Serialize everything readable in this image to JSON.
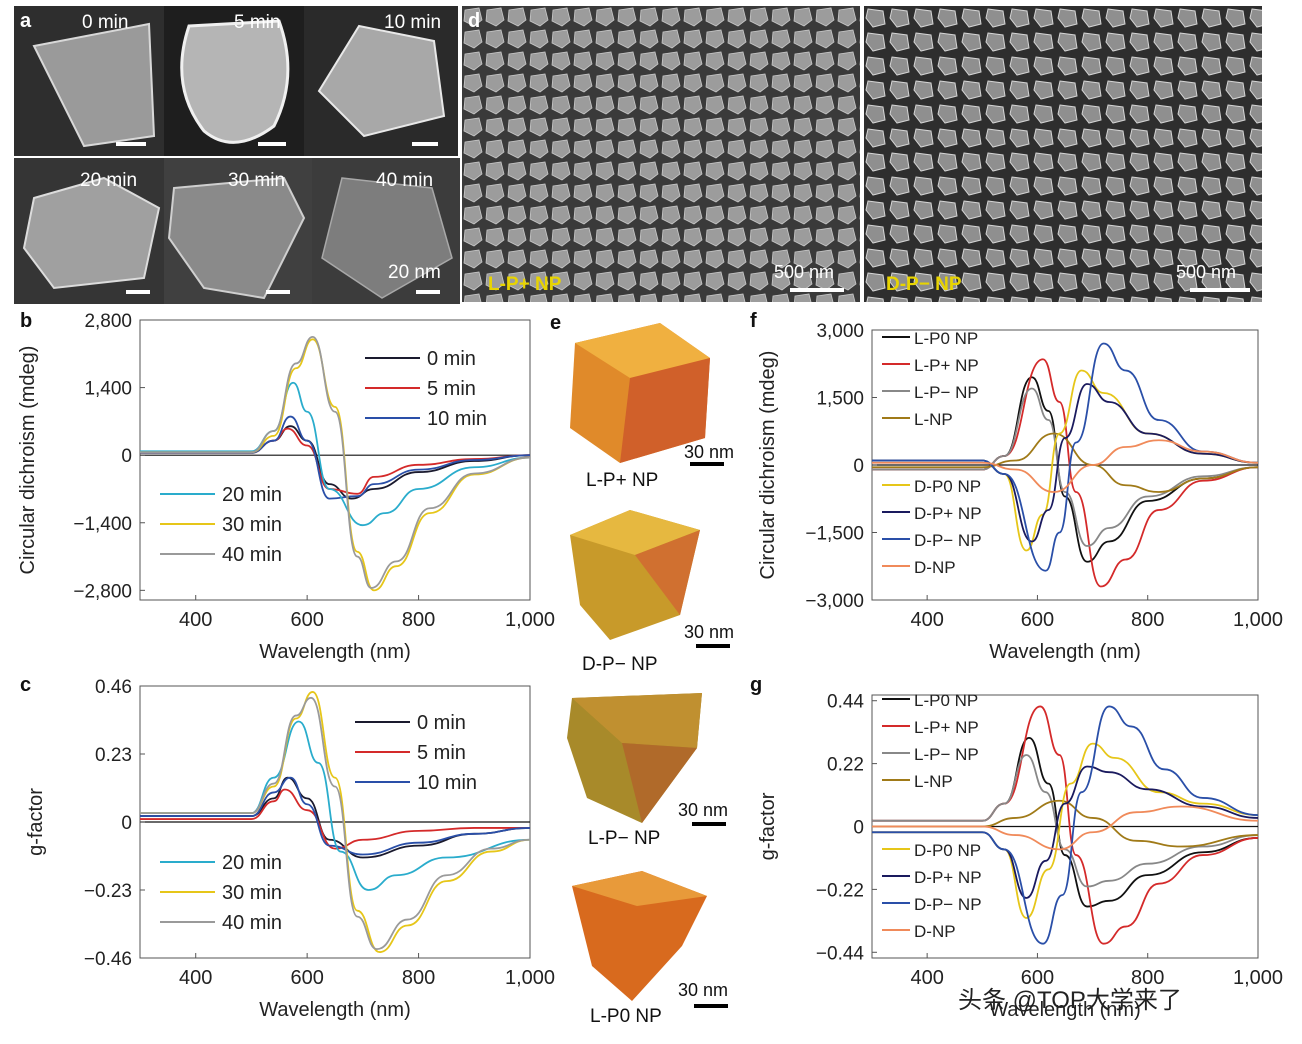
{
  "panel_labels": {
    "a": "a",
    "b": "b",
    "c": "c",
    "d": "d",
    "e": "e",
    "f": "f",
    "g": "g"
  },
  "panel_a": {
    "times": [
      "0 min",
      "5 min",
      "10 min",
      "20 min",
      "30 min",
      "40 min"
    ],
    "scale_label": "20 nm"
  },
  "panel_d": {
    "left_label": "L-P+ NP",
    "right_label": "D-P− NP",
    "scale_label": "500 nm"
  },
  "panel_e": {
    "labels": [
      "L-P+ NP",
      "D-P− NP",
      "L-P− NP",
      "L-P0 NP"
    ],
    "scale_label": "30 nm"
  },
  "watermark": "头条 @TOP大学来了",
  "chart_data": [
    {
      "id": "b",
      "type": "line",
      "xlabel": "Wavelength (nm)",
      "ylabel": "Circular dichroism (mdeg)",
      "xlim": [
        300,
        1000
      ],
      "ylim": [
        -3000,
        2800
      ],
      "xticks": [
        400,
        600,
        800,
        1000
      ],
      "xtick_labels": [
        "400",
        "600",
        "800",
        "1,000"
      ],
      "yticks": [
        2800,
        1400,
        0,
        -1400,
        -2800
      ],
      "ytick_labels": [
        "2,800",
        "1,400",
        "0",
        "−1,400",
        "−2,800"
      ],
      "series": [
        {
          "name": "0 min",
          "color": "#1a1a2e",
          "x": [
            300,
            500,
            540,
            570,
            600,
            640,
            680,
            720,
            800,
            900,
            1000
          ],
          "y": [
            50,
            50,
            300,
            600,
            300,
            -600,
            -900,
            -700,
            -350,
            -120,
            0
          ]
        },
        {
          "name": "5 min",
          "color": "#d42a2a",
          "x": [
            300,
            500,
            540,
            565,
            600,
            640,
            690,
            720,
            800,
            900,
            1000
          ],
          "y": [
            50,
            50,
            300,
            550,
            200,
            -700,
            -800,
            -450,
            -200,
            -80,
            0
          ]
        },
        {
          "name": "10 min",
          "color": "#2a4fa8",
          "x": [
            300,
            500,
            540,
            570,
            600,
            640,
            690,
            720,
            800,
            900,
            1000
          ],
          "y": [
            50,
            50,
            300,
            800,
            300,
            -900,
            -850,
            -600,
            -300,
            -100,
            0
          ]
        },
        {
          "name": "20 min",
          "color": "#2aaccc",
          "x": [
            300,
            500,
            540,
            575,
            600,
            640,
            700,
            740,
            800,
            900,
            1000
          ],
          "y": [
            80,
            80,
            500,
            1500,
            900,
            -700,
            -1450,
            -1200,
            -700,
            -250,
            -50
          ]
        },
        {
          "name": "30 min",
          "color": "#e6c619",
          "x": [
            300,
            500,
            540,
            580,
            610,
            650,
            690,
            720,
            760,
            820,
            900,
            1000
          ],
          "y": [
            60,
            60,
            400,
            1800,
            2400,
            1000,
            -2000,
            -2800,
            -2300,
            -1200,
            -400,
            -50
          ]
        },
        {
          "name": "40 min",
          "color": "#9a9a9a",
          "x": [
            300,
            500,
            540,
            580,
            610,
            650,
            690,
            715,
            760,
            820,
            900,
            1000
          ],
          "y": [
            60,
            60,
            500,
            1900,
            2450,
            900,
            -2100,
            -2750,
            -2200,
            -1100,
            -380,
            -50
          ]
        }
      ]
    },
    {
      "id": "c",
      "type": "line",
      "xlabel": "Wavelength (nm)",
      "ylabel": "g-factor",
      "xlim": [
        300,
        1000
      ],
      "ylim": [
        -0.46,
        0.46
      ],
      "xticks": [
        400,
        600,
        800,
        1000
      ],
      "xtick_labels": [
        "400",
        "600",
        "800",
        "1,000"
      ],
      "yticks": [
        0.46,
        0.23,
        0,
        -0.23,
        -0.46
      ],
      "ytick_labels": [
        "0.46",
        "0.23",
        "0",
        "−0.23",
        "−0.46"
      ],
      "series": [
        {
          "name": "0 min",
          "color": "#1a1a2e",
          "x": [
            300,
            500,
            540,
            565,
            600,
            640,
            700,
            800,
            900,
            1000
          ],
          "y": [
            0.02,
            0.02,
            0.08,
            0.15,
            0.08,
            -0.06,
            -0.12,
            -0.08,
            -0.04,
            -0.02
          ]
        },
        {
          "name": "5 min",
          "color": "#d42a2a",
          "x": [
            300,
            500,
            540,
            560,
            600,
            650,
            700,
            800,
            900,
            1000
          ],
          "y": [
            0.01,
            0.01,
            0.07,
            0.11,
            0.04,
            -0.09,
            -0.06,
            -0.03,
            -0.02,
            -0.02
          ]
        },
        {
          "name": "10 min",
          "color": "#2a4fa8",
          "x": [
            300,
            500,
            540,
            570,
            600,
            640,
            700,
            800,
            900,
            1000
          ],
          "y": [
            0.02,
            0.02,
            0.1,
            0.15,
            0.06,
            -0.08,
            -0.11,
            -0.07,
            -0.04,
            -0.02
          ]
        },
        {
          "name": "20 min",
          "color": "#2aaccc",
          "x": [
            300,
            500,
            540,
            585,
            620,
            660,
            710,
            760,
            850,
            1000
          ],
          "y": [
            0.03,
            0.03,
            0.15,
            0.34,
            0.2,
            -0.1,
            -0.23,
            -0.18,
            -0.12,
            -0.06
          ]
        },
        {
          "name": "30 min",
          "color": "#e6c619",
          "x": [
            300,
            500,
            540,
            580,
            610,
            650,
            690,
            730,
            780,
            850,
            930,
            1000
          ],
          "y": [
            0.03,
            0.03,
            0.12,
            0.35,
            0.44,
            0.15,
            -0.3,
            -0.44,
            -0.35,
            -0.2,
            -0.1,
            -0.06
          ]
        },
        {
          "name": "40 min",
          "color": "#9a9a9a",
          "x": [
            300,
            500,
            540,
            580,
            607,
            650,
            690,
            725,
            780,
            850,
            930,
            1000
          ],
          "y": [
            0.03,
            0.03,
            0.13,
            0.36,
            0.42,
            0.12,
            -0.32,
            -0.43,
            -0.33,
            -0.18,
            -0.09,
            -0.06
          ]
        }
      ]
    },
    {
      "id": "f",
      "type": "line",
      "xlabel": "Wavelength (nm)",
      "ylabel": "Circular dichroism (mdeg)",
      "xlim": [
        300,
        1000
      ],
      "ylim": [
        -3000,
        3000
      ],
      "xticks": [
        400,
        600,
        800,
        1000
      ],
      "xtick_labels": [
        "400",
        "600",
        "800",
        "1,000"
      ],
      "yticks": [
        3000,
        1500,
        0,
        -1500,
        -3000
      ],
      "ytick_labels": [
        "3,000",
        "1,500",
        "0",
        "−1,500",
        "−3,000"
      ],
      "series": [
        {
          "name": "L-P0 NP",
          "color": "#111111",
          "x": [
            300,
            500,
            540,
            590,
            620,
            650,
            690,
            730,
            800,
            900,
            1000
          ],
          "y": [
            -100,
            -100,
            200,
            1950,
            1200,
            -700,
            -2150,
            -1700,
            -800,
            -300,
            -50
          ]
        },
        {
          "name": "L-P+ NP",
          "color": "#d42a2a",
          "x": [
            300,
            500,
            540,
            610,
            640,
            670,
            715,
            760,
            820,
            900,
            1000
          ],
          "y": [
            -100,
            -100,
            200,
            2350,
            1400,
            -600,
            -2700,
            -2100,
            -1000,
            -350,
            -50
          ]
        },
        {
          "name": "L-P− NP",
          "color": "#888888",
          "x": [
            300,
            500,
            540,
            590,
            620,
            650,
            690,
            730,
            800,
            900,
            1000
          ],
          "y": [
            -100,
            -100,
            200,
            1700,
            1000,
            -600,
            -1800,
            -1400,
            -700,
            -250,
            -50
          ]
        },
        {
          "name": "L-NP",
          "color": "#a07a18",
          "x": [
            300,
            500,
            560,
            630,
            700,
            760,
            820,
            900,
            1000
          ],
          "y": [
            -50,
            -50,
            100,
            700,
            0,
            -450,
            -600,
            -300,
            -50
          ]
        },
        {
          "name": "D-P0 NP",
          "color": "#e6c619",
          "x": [
            300,
            500,
            540,
            580,
            610,
            640,
            680,
            720,
            800,
            900,
            1000
          ],
          "y": [
            100,
            100,
            -200,
            -1900,
            -1100,
            700,
            2100,
            1600,
            700,
            250,
            50
          ]
        },
        {
          "name": "D-P+ NP",
          "color": "#1a1a5e",
          "x": [
            300,
            500,
            540,
            590,
            620,
            650,
            690,
            730,
            800,
            900,
            1000
          ],
          "y": [
            100,
            100,
            -200,
            -1700,
            -1000,
            600,
            1800,
            1400,
            700,
            250,
            50
          ]
        },
        {
          "name": "D-P− NP",
          "color": "#2a4fa8",
          "x": [
            300,
            500,
            540,
            615,
            640,
            670,
            720,
            760,
            820,
            900,
            1000
          ],
          "y": [
            100,
            100,
            -200,
            -2350,
            -1500,
            500,
            2700,
            2100,
            1000,
            300,
            50
          ]
        },
        {
          "name": "D-NP",
          "color": "#f08a5a",
          "x": [
            300,
            500,
            560,
            630,
            700,
            760,
            820,
            900,
            1000
          ],
          "y": [
            50,
            50,
            -100,
            -600,
            0,
            400,
            550,
            300,
            50
          ]
        }
      ]
    },
    {
      "id": "g",
      "type": "line",
      "xlabel": "Wavelength (nm)",
      "ylabel": "g-factor",
      "xlim": [
        300,
        1000
      ],
      "ylim": [
        -0.46,
        0.46
      ],
      "xticks": [
        400,
        600,
        800,
        1000
      ],
      "xtick_labels": [
        "400",
        "600",
        "800",
        "1,000"
      ],
      "yticks": [
        0.44,
        0.22,
        0,
        -0.22,
        -0.44
      ],
      "ytick_labels": [
        "0.44",
        "0.22",
        "0",
        "−0.22",
        "−0.44"
      ],
      "series": [
        {
          "name": "L-P0 NP",
          "color": "#111111",
          "x": [
            300,
            500,
            540,
            585,
            620,
            650,
            690,
            730,
            800,
            900,
            1000
          ],
          "y": [
            0.02,
            0.02,
            0.08,
            0.31,
            0.15,
            -0.1,
            -0.28,
            -0.26,
            -0.17,
            -0.09,
            -0.04
          ]
        },
        {
          "name": "L-P+ NP",
          "color": "#d42a2a",
          "x": [
            300,
            500,
            540,
            605,
            640,
            670,
            720,
            760,
            820,
            900,
            1000
          ],
          "y": [
            0.02,
            0.02,
            0.08,
            0.42,
            0.25,
            -0.1,
            -0.41,
            -0.35,
            -0.2,
            -0.1,
            -0.04
          ]
        },
        {
          "name": "L-P− NP",
          "color": "#888888",
          "x": [
            300,
            500,
            540,
            580,
            615,
            650,
            690,
            730,
            800,
            900,
            1000
          ],
          "y": [
            0.02,
            0.02,
            0.08,
            0.25,
            0.12,
            -0.08,
            -0.21,
            -0.19,
            -0.13,
            -0.07,
            -0.03
          ]
        },
        {
          "name": "L-NP",
          "color": "#a07a18",
          "x": [
            300,
            500,
            560,
            640,
            700,
            780,
            860,
            1000
          ],
          "y": [
            0,
            0,
            0.03,
            0.09,
            0.03,
            -0.05,
            -0.07,
            -0.03
          ]
        },
        {
          "name": "D-P0 NP",
          "color": "#e6c619",
          "x": [
            300,
            500,
            540,
            580,
            620,
            660,
            700,
            740,
            820,
            900,
            1000
          ],
          "y": [
            -0.02,
            -0.02,
            -0.08,
            -0.32,
            -0.15,
            0.15,
            0.29,
            0.24,
            0.12,
            0.08,
            0.04
          ]
        },
        {
          "name": "D-P+ NP",
          "color": "#1a1a5e",
          "x": [
            300,
            500,
            540,
            580,
            615,
            650,
            690,
            730,
            800,
            900,
            1000
          ],
          "y": [
            -0.02,
            -0.02,
            -0.08,
            -0.25,
            -0.12,
            0.08,
            0.21,
            0.19,
            0.13,
            0.07,
            0.03
          ]
        },
        {
          "name": "D-P− NP",
          "color": "#2a4fa8",
          "x": [
            300,
            500,
            540,
            610,
            645,
            680,
            730,
            770,
            830,
            900,
            1000
          ],
          "y": [
            -0.02,
            -0.02,
            -0.08,
            -0.41,
            -0.24,
            0.12,
            0.42,
            0.35,
            0.2,
            0.1,
            0.04
          ]
        },
        {
          "name": "D-NP",
          "color": "#f08a5a",
          "x": [
            300,
            500,
            560,
            640,
            700,
            780,
            860,
            1000
          ],
          "y": [
            0,
            0,
            -0.03,
            -0.08,
            -0.02,
            0.05,
            0.07,
            0.02
          ]
        }
      ]
    }
  ]
}
